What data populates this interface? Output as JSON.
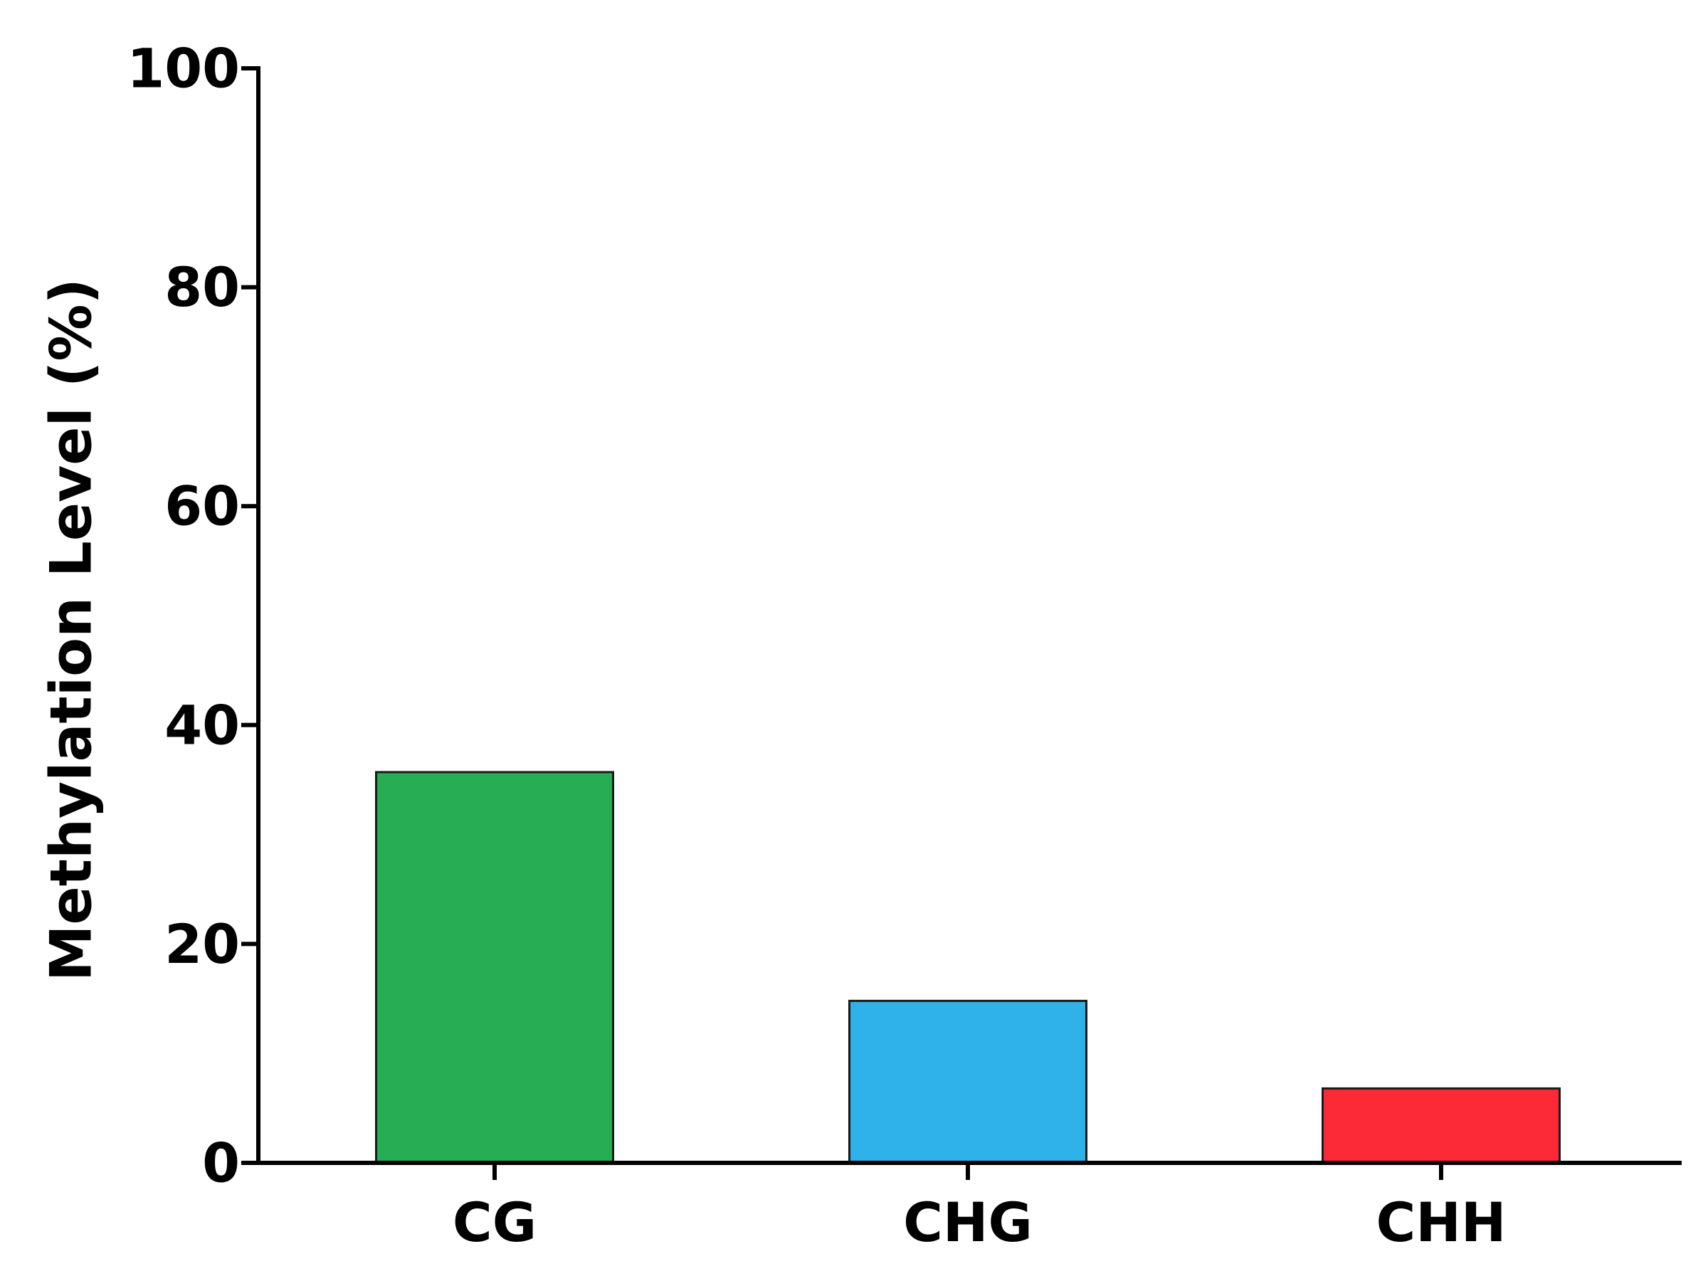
{
  "chart_data": {
    "type": "bar",
    "categories": [
      "CG",
      "CHG",
      "CHH"
    ],
    "values": [
      35.7,
      14.8,
      6.8
    ],
    "colors": [
      "#27ad53",
      "#2eb2e9",
      "#fc2936"
    ],
    "title": "",
    "xlabel": "",
    "ylabel": "Methylation Level (%)",
    "ylim": [
      0,
      100
    ],
    "yticks": [
      0,
      20,
      40,
      60,
      80,
      100
    ],
    "grid": false,
    "legend": "none"
  }
}
